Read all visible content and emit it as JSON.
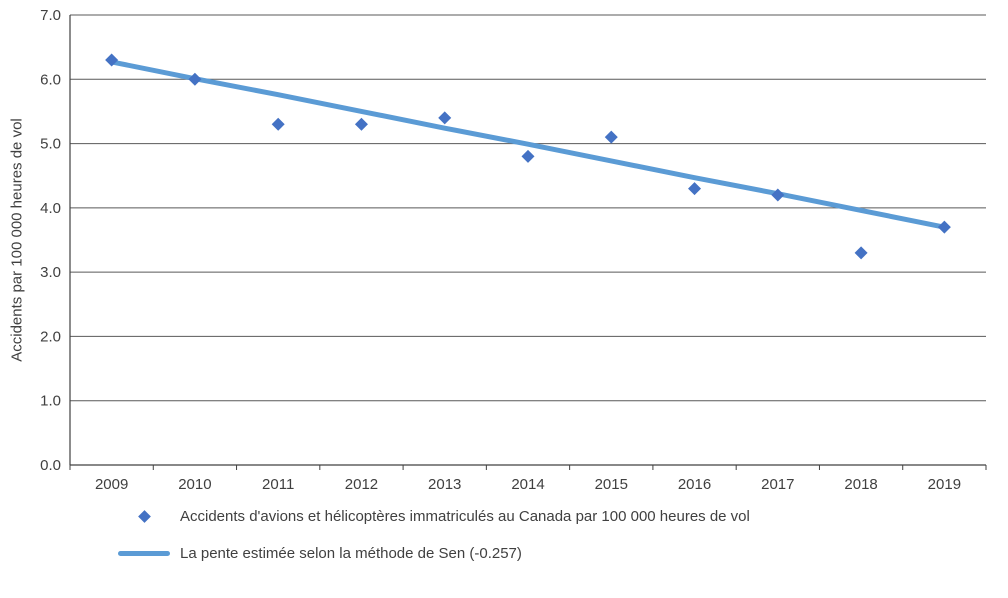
{
  "chart_data": {
    "type": "scatter",
    "title": "",
    "xlabel": "",
    "ylabel": "Accidents par 100 000 heures de vol",
    "ylim": [
      0.0,
      7.0
    ],
    "ytick_labels": [
      "0.0",
      "1.0",
      "2.0",
      "3.0",
      "4.0",
      "5.0",
      "6.0",
      "7.0"
    ],
    "grid": "horizontal",
    "legend_position": "bottom-left",
    "categories": [
      "2009",
      "2010",
      "2011",
      "2012",
      "2013",
      "2014",
      "2015",
      "2016",
      "2017",
      "2018",
      "2019"
    ],
    "series": [
      {
        "name": "Accidents d'avions et hélicoptères immatriculés au Canada par 100 000 heures de vol",
        "type": "scatter",
        "marker": "diamond",
        "color": "#4472C4",
        "values": [
          6.3,
          6.0,
          5.3,
          5.3,
          5.4,
          4.8,
          5.1,
          4.3,
          4.2,
          3.3,
          3.7
        ]
      },
      {
        "name": "La pente estimée selon la méthode de Sen (-0.257)",
        "type": "line",
        "color": "#5B9BD5",
        "stroke_width": 5,
        "values": [
          6.27,
          6.01,
          5.76,
          5.5,
          5.24,
          4.99,
          4.73,
          4.47,
          4.22,
          3.96,
          3.7
        ]
      }
    ],
    "colors": {
      "axis": "#404040",
      "gridline": "#595959",
      "text": "#404040"
    }
  }
}
